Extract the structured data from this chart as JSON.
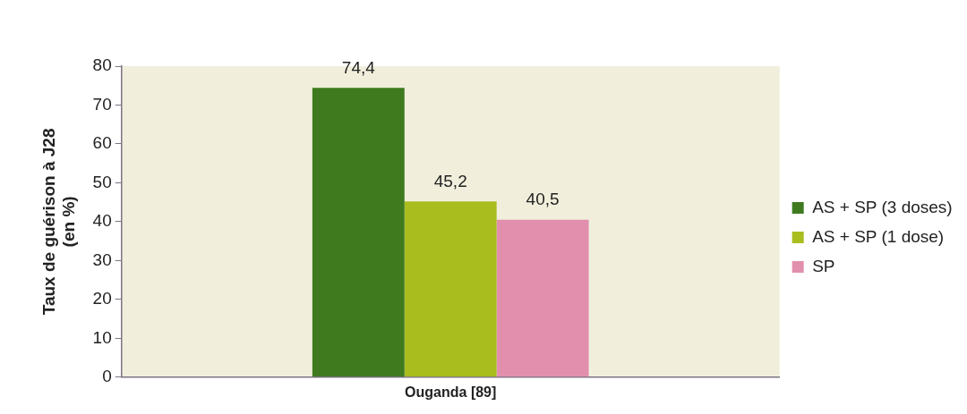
{
  "chart_data": {
    "type": "bar",
    "ylabel": "Taux de guérison à J28\n(en %)",
    "categories": [
      "Ouganda [89]"
    ],
    "series": [
      {
        "name": "AS + SP (3 doses)",
        "color": "#3f7a1f",
        "values": [
          74.4
        ],
        "value_labels": [
          "74,4"
        ]
      },
      {
        "name": "AS + SP (1 dose)",
        "color": "#a9bd1f",
        "values": [
          45.2
        ],
        "value_labels": [
          "45,2"
        ]
      },
      {
        "name": "SP",
        "color": "#e28fae",
        "values": [
          40.5
        ],
        "value_labels": [
          "40,5"
        ]
      }
    ],
    "ylim": [
      0,
      80
    ],
    "yticks": [
      0,
      10,
      20,
      30,
      40,
      50,
      60,
      70,
      80
    ],
    "legend": "right"
  }
}
